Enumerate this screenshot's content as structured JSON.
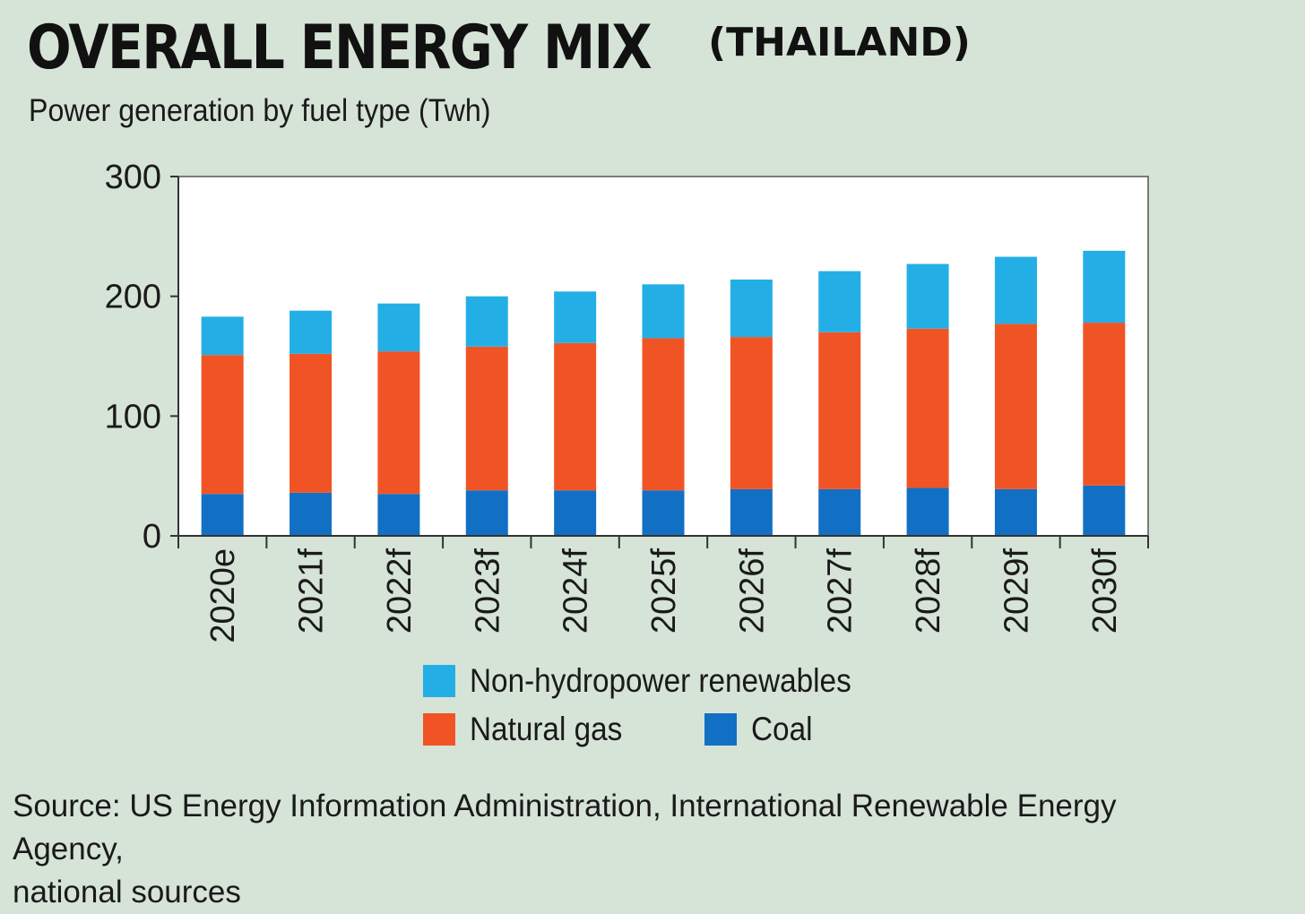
{
  "title": "OVERALL ENERGY MIX",
  "title_suffix": "(THAILAND)",
  "subtitle": "Power generation by fuel type (Twh)",
  "source_line1": "Source: US Energy Information Administration, International Renewable Energy Agency,",
  "source_line2": "national sources",
  "colors": {
    "background": "#d6e3d7",
    "plot_background": "#ffffff",
    "coal": "#1270c4",
    "natural_gas": "#f15424",
    "renewables": "#23afe6"
  },
  "legend": [
    {
      "label": "Non-hydropower renewables",
      "series": "Non-hydropower renewables"
    },
    {
      "label": "Natural gas",
      "series": "Natural gas"
    },
    {
      "label": "Coal",
      "series": "Coal"
    }
  ],
  "chart_data": {
    "type": "bar",
    "stacked": true,
    "title": "OVERALL ENERGY MIX (THAILAND)",
    "subtitle": "Power generation by fuel type (Twh)",
    "categories": [
      "2020e",
      "2021f",
      "2022f",
      "2023f",
      "2024f",
      "2025f",
      "2026f",
      "2027f",
      "2028f",
      "2029f",
      "2030f"
    ],
    "series": [
      {
        "name": "Coal",
        "color": "#1270c4",
        "values": [
          35,
          36,
          35,
          38,
          38,
          38,
          39,
          39,
          40,
          39,
          42
        ]
      },
      {
        "name": "Natural gas",
        "color": "#f15424",
        "values": [
          116,
          116,
          119,
          120,
          123,
          127,
          127,
          131,
          133,
          138,
          136
        ]
      },
      {
        "name": "Non-hydropower renewables",
        "color": "#23afe6",
        "values": [
          32,
          36,
          40,
          42,
          43,
          45,
          48,
          51,
          54,
          56,
          60
        ]
      }
    ],
    "yticks": [
      0,
      100,
      200,
      300
    ],
    "ylim": [
      0,
      300
    ],
    "xlabel": "",
    "ylabel": "",
    "grid": false,
    "legend_position": "bottom"
  }
}
